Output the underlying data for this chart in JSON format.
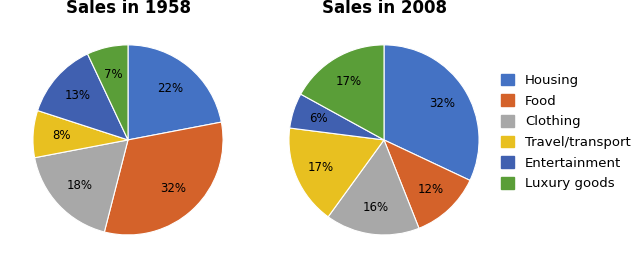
{
  "title1": "Sales in 1958",
  "title2": "Sales in 2008",
  "categories": [
    "Housing",
    "Food",
    "Clothing",
    "Travel/transport",
    "Entertainment",
    "Luxury goods"
  ],
  "colors": [
    "#4472C4",
    "#E07030",
    "#A0A0A0",
    "#E8B830",
    "#4472C4",
    "#5A9E40"
  ],
  "colors_fixed": [
    "#4472C4",
    "#D2691E",
    "#A9A9A9",
    "#E8C030",
    "#4169C8",
    "#5C9E3A"
  ],
  "entertainment_color": "#3B5BA8",
  "values_1958": [
    22,
    32,
    18,
    8,
    13,
    7
  ],
  "values_2008": [
    32,
    12,
    16,
    17,
    6,
    17
  ],
  "startangle_1958": 90,
  "startangle_2008": 90,
  "title_fontsize": 12,
  "label_fontsize": 8.5,
  "legend_fontsize": 9.5,
  "bg_color": "#FFFFFF",
  "pie_colors": [
    "#4472C4",
    "#D4622A",
    "#A8A8A8",
    "#E8C020",
    "#4060B0",
    "#5A9E38"
  ]
}
